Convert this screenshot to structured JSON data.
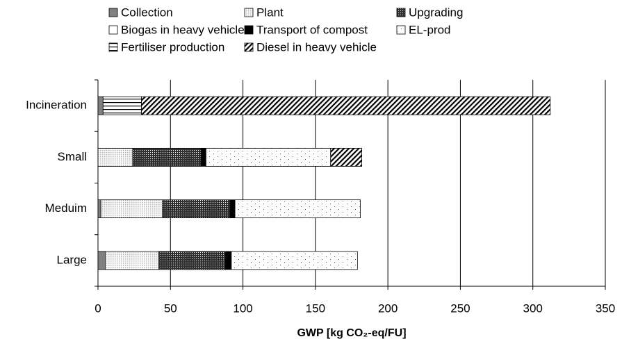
{
  "chart_data": {
    "type": "stacked-barh",
    "x_label": "GWP [kg CO₂-eq/FU]",
    "categories": [
      "Incineration",
      "Small",
      "Meduim",
      "Large"
    ],
    "series": [
      {
        "name": "Collection",
        "color": "#808080",
        "pattern": "solid",
        "values": [
          3.5,
          0,
          2,
          5
        ]
      },
      {
        "name": "Plant",
        "color": "#b0b0b0",
        "pattern": "fine-dots",
        "values": [
          0,
          24,
          42.5,
          37
        ]
      },
      {
        "name": "Upgrading",
        "color": "#303030",
        "pattern": "checker",
        "values": [
          0,
          47,
          46.5,
          46
        ]
      },
      {
        "name": "Biogas in heavy vehicle",
        "color": "#ffffff",
        "pattern": "solid",
        "values": [
          0,
          0,
          0,
          0
        ]
      },
      {
        "name": "Transport of compost",
        "color": "#000000",
        "pattern": "solid",
        "values": [
          0,
          3.5,
          3.5,
          4
        ]
      },
      {
        "name": "EL-prod",
        "color": "#555555",
        "pattern": "sparse-dots",
        "values": [
          0,
          86,
          86.5,
          87
        ]
      },
      {
        "name": "Fertiliser production",
        "color": "#000000",
        "pattern": "hlines",
        "values": [
          26.5,
          0,
          0,
          0
        ]
      },
      {
        "name": "Diesel in heavy vehicle",
        "color": "#000000",
        "pattern": "diagonal",
        "values": [
          282,
          21.5,
          0,
          0
        ]
      }
    ],
    "xlim": [
      0,
      350
    ],
    "xticks": [
      0,
      50,
      100,
      150,
      200,
      250,
      300,
      350
    ],
    "grid": true
  }
}
